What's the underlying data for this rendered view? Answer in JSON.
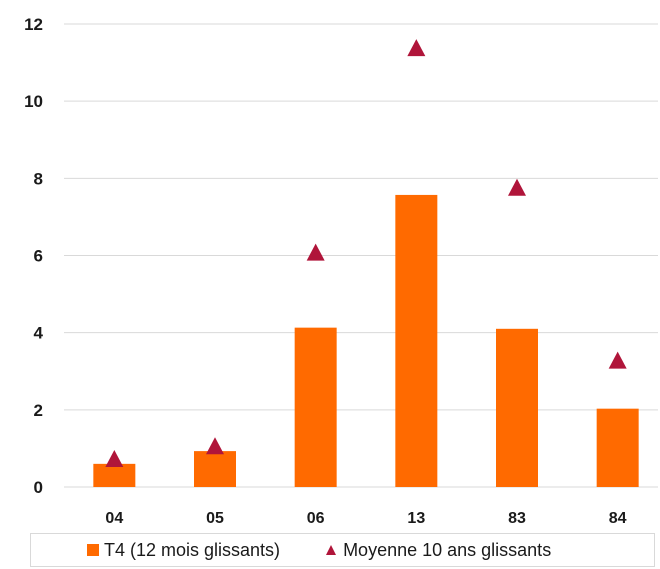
{
  "chart_data": {
    "type": "bar",
    "categories": [
      "04",
      "05",
      "06",
      "13",
      "83",
      "84"
    ],
    "series": [
      {
        "name": "T4 (12 mois glissants)",
        "kind": "bar",
        "color": "#ff6a00",
        "values": [
          0.6,
          0.93,
          4.13,
          7.57,
          4.1,
          2.03
        ]
      },
      {
        "name": "Moyenne 10 ans glissants",
        "kind": "marker-triangle",
        "color": "#b0153a",
        "values": [
          0.7,
          1.03,
          6.05,
          11.35,
          7.73,
          3.25
        ]
      }
    ],
    "yticks": [
      "0",
      "2",
      "4",
      "6",
      "8",
      "10",
      "12"
    ],
    "ylim": [
      0,
      12
    ],
    "grid": true,
    "legend_position": "bottom"
  }
}
